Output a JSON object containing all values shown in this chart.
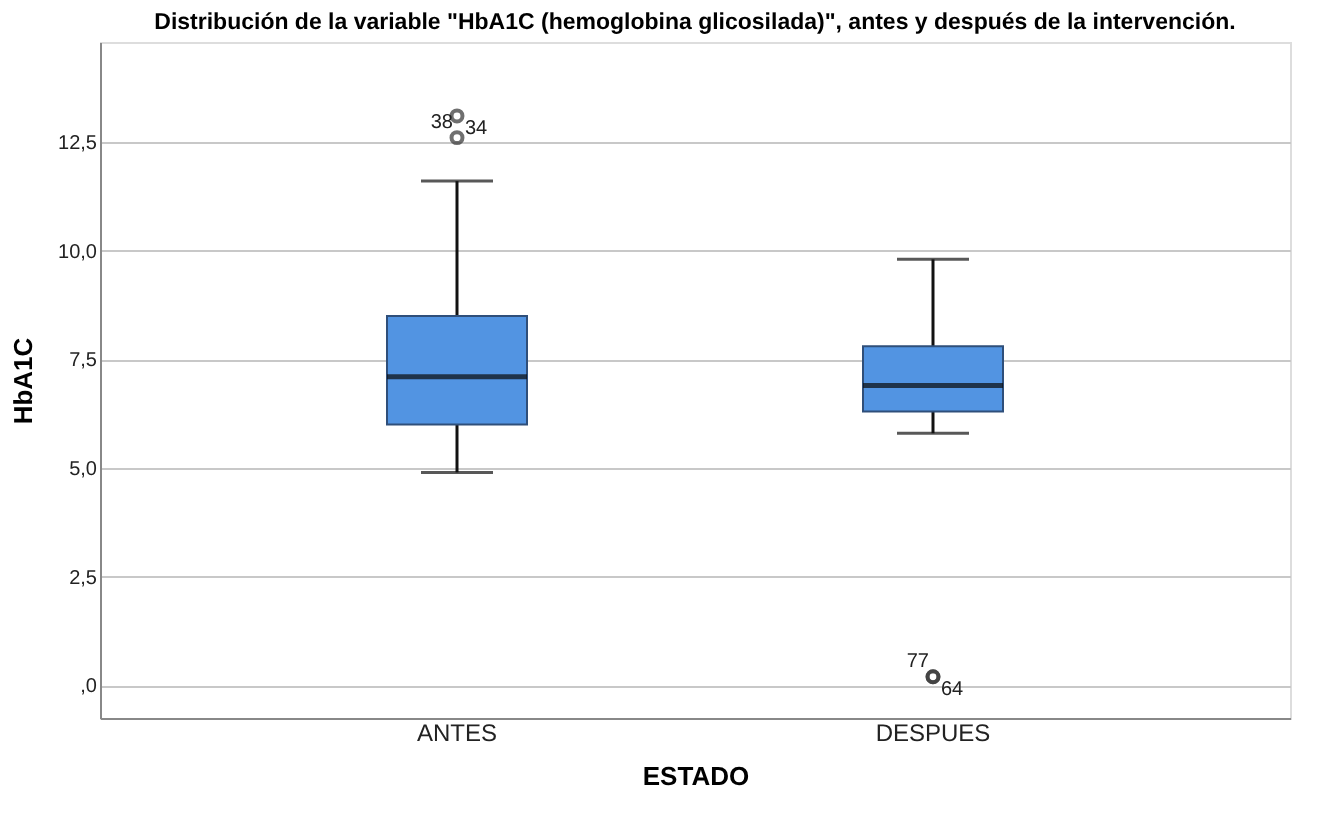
{
  "chart_data": {
    "type": "box",
    "title": "Distribución de la variable \"HbA1C (hemoglobina glicosilada)\", antes y después de la intervención.",
    "xlabel": "ESTADO",
    "ylabel": "HbA1C",
    "categories": [
      "ANTES",
      "DESPUES"
    ],
    "boxes": [
      {
        "low": 4.9,
        "q1": 6.0,
        "median": 7.1,
        "q3": 8.5,
        "high": 11.6,
        "outliers": [
          12.6,
          13.1
        ]
      },
      {
        "low": 5.8,
        "q1": 6.3,
        "median": 6.9,
        "q3": 7.8,
        "high": 9.8,
        "outliers": [
          0.2,
          0.2
        ]
      }
    ],
    "color": "#5294e2",
    "ylim": [
      -0.75,
      14.8
    ],
    "yticks": [
      {
        "value": 0,
        "label": ",0"
      },
      {
        "value": 2.5,
        "label": "2,5"
      },
      {
        "value": 5,
        "label": "5,0"
      },
      {
        "value": 7.5,
        "label": "7,5"
      },
      {
        "value": 10,
        "label": "10,0"
      },
      {
        "value": 12.5,
        "label": "12,5"
      }
    ],
    "grid": "y",
    "marker": "circle",
    "annotations": [
      "38",
      "34",
      "77",
      "64"
    ]
  }
}
